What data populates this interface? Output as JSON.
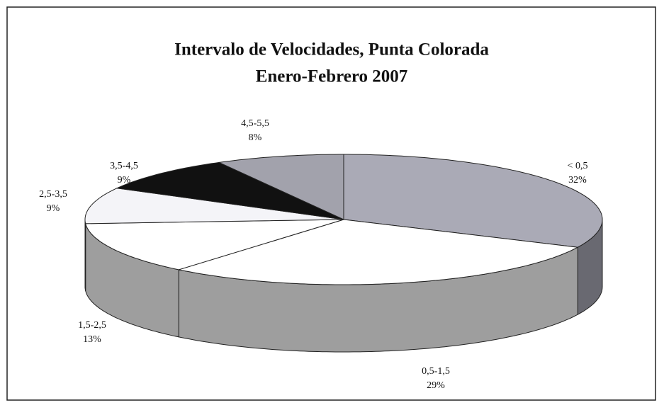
{
  "chart_data": {
    "type": "pie3d",
    "title": "Intervalo de Velocidades, Punta Colorada",
    "subtitle": "Enero-Febrero 2007",
    "categories": [
      "< 0,5",
      "0,5-1,5",
      "1,5-2,5",
      "2,5-3,5",
      "3,5-4,5",
      "4,5-5,5"
    ],
    "values": [
      32,
      29,
      13,
      9,
      9,
      8
    ],
    "value_labels": [
      "32%",
      "29%",
      "13%",
      "9%",
      "9%",
      "8%"
    ],
    "colors": [
      "#aaaab6",
      "#ffffff",
      "#ffffff",
      "#f4f4f8",
      "#111111",
      "#a2a2ac"
    ]
  }
}
